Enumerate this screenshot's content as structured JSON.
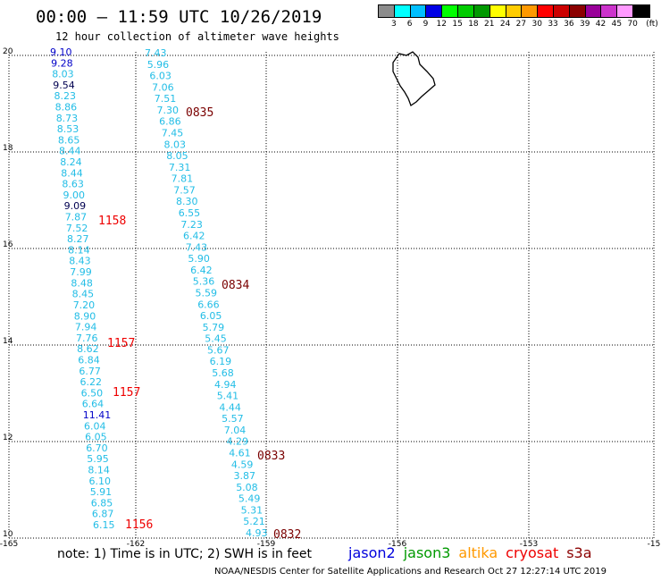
{
  "header": {
    "title": "00:00 – 11:59 UTC 10/26/2019",
    "subtitle": "12 hour collection of altimeter wave heights"
  },
  "legend": {
    "swatch_colors": [
      "#8c8c8c",
      "#00ffff",
      "#00bfff",
      "#0000e6",
      "#00ff00",
      "#00cc00",
      "#009900",
      "#ffff00",
      "#ffcc00",
      "#ff9900",
      "#ff0000",
      "#cc0000",
      "#8b0000",
      "#990099",
      "#cc33cc",
      "#ff99ff",
      "#000000"
    ],
    "labels": [
      "3",
      "6",
      "9",
      "12",
      "15",
      "18",
      "21",
      "24",
      "27",
      "30",
      "33",
      "36",
      "39",
      "42",
      "45",
      "70",
      "(ft)"
    ],
    "colors": {
      "cyan": "#22bde6",
      "blue": "#0000c8",
      "dark": "#000050",
      "time_red": "#ee0000",
      "time_darkred": "#7a0000"
    }
  },
  "axes": {
    "x_ticks": [
      "-165",
      "-162",
      "-159",
      "-156",
      "-153",
      "-15"
    ],
    "y_ticks": [
      "20",
      "18",
      "16",
      "14",
      "12",
      "10"
    ]
  },
  "tracks": [
    {
      "name": "cryosat",
      "points": [
        {
          "v": "9.10",
          "c": "blue"
        },
        {
          "v": "9.28",
          "c": "blue"
        },
        {
          "v": "8.03",
          "c": "cyan"
        },
        {
          "v": "9.54",
          "c": "dark"
        },
        {
          "v": "8.23",
          "c": "cyan"
        },
        {
          "v": "8.86",
          "c": "cyan"
        },
        {
          "v": "8.73",
          "c": "cyan"
        },
        {
          "v": "8.53",
          "c": "cyan"
        },
        {
          "v": "8.65",
          "c": "cyan"
        },
        {
          "v": "8.44",
          "c": "cyan"
        },
        {
          "v": "8.24",
          "c": "cyan"
        },
        {
          "v": "8.44",
          "c": "cyan"
        },
        {
          "v": "8.63",
          "c": "cyan"
        },
        {
          "v": "9.00",
          "c": "cyan"
        },
        {
          "v": "9.09",
          "c": "dark"
        },
        {
          "v": "7.87",
          "c": "cyan"
        },
        {
          "v": "7.52",
          "c": "cyan"
        },
        {
          "v": "8.27",
          "c": "cyan"
        },
        {
          "v": "8.14",
          "c": "cyan"
        },
        {
          "v": "8.43",
          "c": "cyan"
        },
        {
          "v": "7.99",
          "c": "cyan"
        },
        {
          "v": "8.48",
          "c": "cyan"
        },
        {
          "v": "8.45",
          "c": "cyan"
        },
        {
          "v": "7.20",
          "c": "cyan"
        },
        {
          "v": "8.90",
          "c": "cyan"
        },
        {
          "v": "7.94",
          "c": "cyan"
        },
        {
          "v": "7.76",
          "c": "cyan"
        },
        {
          "v": "8.62",
          "c": "cyan"
        },
        {
          "v": "6.84",
          "c": "cyan"
        },
        {
          "v": "6.77",
          "c": "cyan"
        },
        {
          "v": "6.22",
          "c": "cyan"
        },
        {
          "v": "6.50",
          "c": "cyan"
        },
        {
          "v": "6.64",
          "c": "cyan"
        },
        {
          "v": "11.41",
          "c": "blue"
        },
        {
          "v": "6.04",
          "c": "cyan"
        },
        {
          "v": "6.05",
          "c": "cyan"
        },
        {
          "v": "6.70",
          "c": "cyan"
        },
        {
          "v": "5.95",
          "c": "cyan"
        },
        {
          "v": "8.14",
          "c": "cyan"
        },
        {
          "v": "6.10",
          "c": "cyan"
        },
        {
          "v": "5.91",
          "c": "cyan"
        },
        {
          "v": "6.85",
          "c": "cyan"
        },
        {
          "v": "6.87",
          "c": "cyan"
        },
        {
          "v": "6.15",
          "c": "cyan"
        }
      ]
    },
    {
      "name": "s3a",
      "points": [
        {
          "v": "7.43",
          "c": "cyan"
        },
        {
          "v": "5.96",
          "c": "cyan"
        },
        {
          "v": "6.03",
          "c": "cyan"
        },
        {
          "v": "7.06",
          "c": "cyan"
        },
        {
          "v": "7.51",
          "c": "cyan"
        },
        {
          "v": "7.30",
          "c": "cyan"
        },
        {
          "v": "6.86",
          "c": "cyan"
        },
        {
          "v": "7.45",
          "c": "cyan"
        },
        {
          "v": "8.03",
          "c": "cyan"
        },
        {
          "v": "8.05",
          "c": "cyan"
        },
        {
          "v": "7.31",
          "c": "cyan"
        },
        {
          "v": "7.81",
          "c": "cyan"
        },
        {
          "v": "7.57",
          "c": "cyan"
        },
        {
          "v": "8.30",
          "c": "cyan"
        },
        {
          "v": "6.55",
          "c": "cyan"
        },
        {
          "v": "7.23",
          "c": "cyan"
        },
        {
          "v": "6.42",
          "c": "cyan"
        },
        {
          "v": "7.43",
          "c": "cyan"
        },
        {
          "v": "5.90",
          "c": "cyan"
        },
        {
          "v": "6.42",
          "c": "cyan"
        },
        {
          "v": "5.36",
          "c": "cyan"
        },
        {
          "v": "5.59",
          "c": "cyan"
        },
        {
          "v": "6.66",
          "c": "cyan"
        },
        {
          "v": "6.05",
          "c": "cyan"
        },
        {
          "v": "5.79",
          "c": "cyan"
        },
        {
          "v": "5.45",
          "c": "cyan"
        },
        {
          "v": "5.67",
          "c": "cyan"
        },
        {
          "v": "6.19",
          "c": "cyan"
        },
        {
          "v": "5.68",
          "c": "cyan"
        },
        {
          "v": "4.94",
          "c": "cyan"
        },
        {
          "v": "5.41",
          "c": "cyan"
        },
        {
          "v": "4.44",
          "c": "cyan"
        },
        {
          "v": "5.57",
          "c": "cyan"
        },
        {
          "v": "7.04",
          "c": "cyan"
        },
        {
          "v": "4.29",
          "c": "cyan"
        },
        {
          "v": "4.61",
          "c": "cyan"
        },
        {
          "v": "4.59",
          "c": "cyan"
        },
        {
          "v": "3.87",
          "c": "cyan"
        },
        {
          "v": "5.08",
          "c": "cyan"
        },
        {
          "v": "5.49",
          "c": "cyan"
        },
        {
          "v": "5.31",
          "c": "cyan"
        },
        {
          "v": "5.21",
          "c": "cyan"
        },
        {
          "v": "4.93",
          "c": "cyan"
        }
      ]
    }
  ],
  "time_labels": [
    {
      "text": "1158",
      "c": "time_red"
    },
    {
      "text": "1157",
      "c": "time_red"
    },
    {
      "text": "1157",
      "c": "time_red"
    },
    {
      "text": "1156",
      "c": "time_red"
    },
    {
      "text": "0835",
      "c": "time_darkred"
    },
    {
      "text": "0834",
      "c": "time_darkred"
    },
    {
      "text": "0833",
      "c": "time_darkred"
    },
    {
      "text": "0832",
      "c": "time_darkred"
    }
  ],
  "footer": {
    "note": "note: 1) Time is in UTC; 2) SWH is in feet",
    "satellites": [
      {
        "name": "jason2",
        "color": "#0000dd"
      },
      {
        "name": "jason3",
        "color": "#009900"
      },
      {
        "name": "altika",
        "color": "#ff9900"
      },
      {
        "name": "cryosat",
        "color": "#ee0000"
      },
      {
        "name": "s3a",
        "color": "#8b0000"
      }
    ],
    "credit": "NOAA/NESDIS Center for Satellite Applications and Research    Oct 27 12:27:14 UTC 2019"
  }
}
